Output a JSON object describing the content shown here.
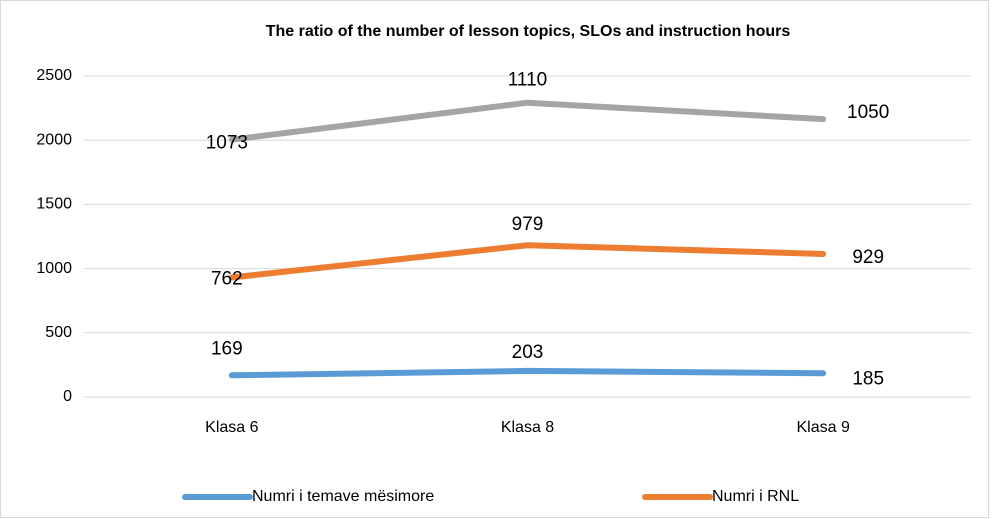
{
  "chart_data": {
    "type": "line",
    "stacked": true,
    "title": "The ratio of the number of lesson topics, SLOs and instruction hours",
    "categories": [
      "Klasa 6",
      "Klasa 8",
      "Klasa 9"
    ],
    "series": [
      {
        "name": "Numri i temave mësimore",
        "color": "#5b9bd5",
        "values": [
          169,
          203,
          185
        ]
      },
      {
        "name": "Numri i  RNL",
        "color": "#ed7d31",
        "values": [
          762,
          979,
          929
        ]
      },
      {
        "color": "#a5a5a5",
        "values": [
          1073,
          1110,
          1050
        ]
      }
    ],
    "ylim": [
      0,
      2500
    ],
    "yticks": [
      0,
      500,
      1000,
      1500,
      2000,
      2500
    ],
    "grid": true
  }
}
